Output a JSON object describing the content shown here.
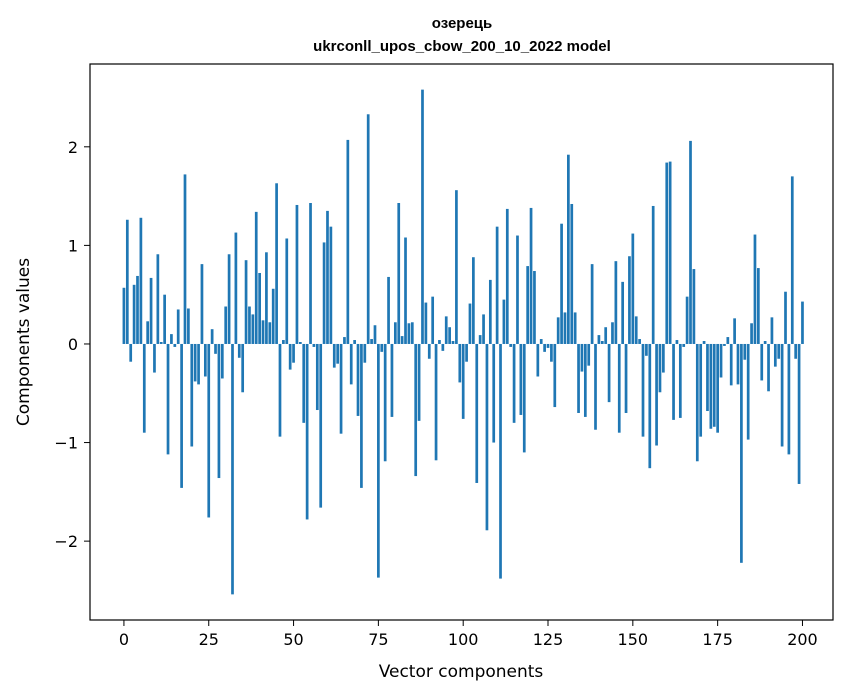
{
  "chart_data": {
    "type": "bar",
    "title_line1": "озерець",
    "title_line2": "ukrconll_upos_cbow_200_10_2022 model",
    "xlabel": "Vector components",
    "ylabel": "Components values",
    "xlim": [
      -10,
      209
    ],
    "ylim": [
      -2.8,
      2.84
    ],
    "xticks": [
      {
        "value": 0,
        "label": "0"
      },
      {
        "value": 25,
        "label": "25"
      },
      {
        "value": 50,
        "label": "50"
      },
      {
        "value": 75,
        "label": "75"
      },
      {
        "value": 100,
        "label": "100"
      },
      {
        "value": 125,
        "label": "125"
      },
      {
        "value": 150,
        "label": "150"
      },
      {
        "value": 175,
        "label": "175"
      },
      {
        "value": 200,
        "label": "200"
      }
    ],
    "yticks": [
      {
        "value": -2,
        "label": "−2"
      },
      {
        "value": -1,
        "label": "−1"
      },
      {
        "value": 0,
        "label": "0"
      },
      {
        "value": 1,
        "label": "1"
      },
      {
        "value": 2,
        "label": "2"
      }
    ],
    "bar_color": "#1f77b4",
    "grid": false,
    "legend": "none",
    "values": [
      0.57,
      1.26,
      -0.18,
      0.6,
      0.69,
      1.28,
      -0.9,
      0.23,
      0.67,
      -0.29,
      0.91,
      0.02,
      0.5,
      -1.12,
      0.1,
      -0.03,
      0.35,
      -1.46,
      1.72,
      0.36,
      -1.04,
      -0.38,
      -0.41,
      0.81,
      -0.33,
      -1.76,
      0.15,
      -0.1,
      -1.36,
      -0.35,
      0.38,
      0.91,
      -2.54,
      1.13,
      -0.14,
      -0.49,
      0.85,
      0.38,
      0.3,
      1.34,
      0.72,
      0.24,
      0.93,
      0.22,
      0.56,
      1.63,
      -0.94,
      0.04,
      1.07,
      -0.26,
      -0.19,
      1.41,
      0.02,
      -0.8,
      -1.78,
      1.43,
      -0.03,
      -0.67,
      -1.66,
      1.03,
      1.35,
      1.19,
      -0.24,
      -0.2,
      -0.91,
      0.07,
      2.07,
      -0.41,
      0.04,
      -0.73,
      -1.46,
      -0.19,
      2.33,
      0.05,
      0.19,
      -2.37,
      -0.08,
      -1.19,
      0.68,
      -0.74,
      0.22,
      1.43,
      0.08,
      1.08,
      0.21,
      0.22,
      -1.34,
      -0.78,
      2.58,
      0.42,
      -0.15,
      0.48,
      -1.18,
      0.04,
      -0.07,
      0.28,
      0.17,
      0.03,
      1.56,
      -0.39,
      -0.76,
      -0.18,
      0.41,
      0.88,
      -1.41,
      0.09,
      0.3,
      -1.89,
      0.65,
      -1.0,
      1.19,
      -2.38,
      0.45,
      1.37,
      -0.03,
      -0.8,
      1.1,
      -0.72,
      -1.1,
      0.79,
      1.38,
      0.74,
      -0.33,
      0.05,
      -0.08,
      -0.04,
      -0.18,
      -0.64,
      0.27,
      1.22,
      0.32,
      1.92,
      1.42,
      0.32,
      -0.7,
      -0.28,
      -0.74,
      -0.22,
      0.81,
      -0.87,
      0.09,
      0.03,
      0.17,
      -0.59,
      0.22,
      0.84,
      -0.9,
      0.63,
      -0.7,
      0.89,
      1.12,
      0.28,
      0.05,
      -0.94,
      -0.12,
      -1.26,
      1.4,
      -1.03,
      -0.49,
      -0.29,
      1.84,
      1.85,
      -0.77,
      0.04,
      -0.75,
      -0.03,
      0.48,
      2.06,
      0.76,
      -1.19,
      -0.94,
      0.03,
      -0.68,
      -0.86,
      -0.84,
      -0.9,
      -0.34,
      -0.02,
      0.07,
      -0.42,
      0.26,
      -0.41,
      -2.22,
      -0.16,
      -0.97,
      0.21,
      1.11,
      0.77,
      -0.37,
      0.03,
      -0.48,
      0.27,
      -0.23,
      -0.15,
      -1.04,
      0.53,
      -1.12,
      1.7,
      -0.15,
      -1.42,
      0.43
    ]
  }
}
